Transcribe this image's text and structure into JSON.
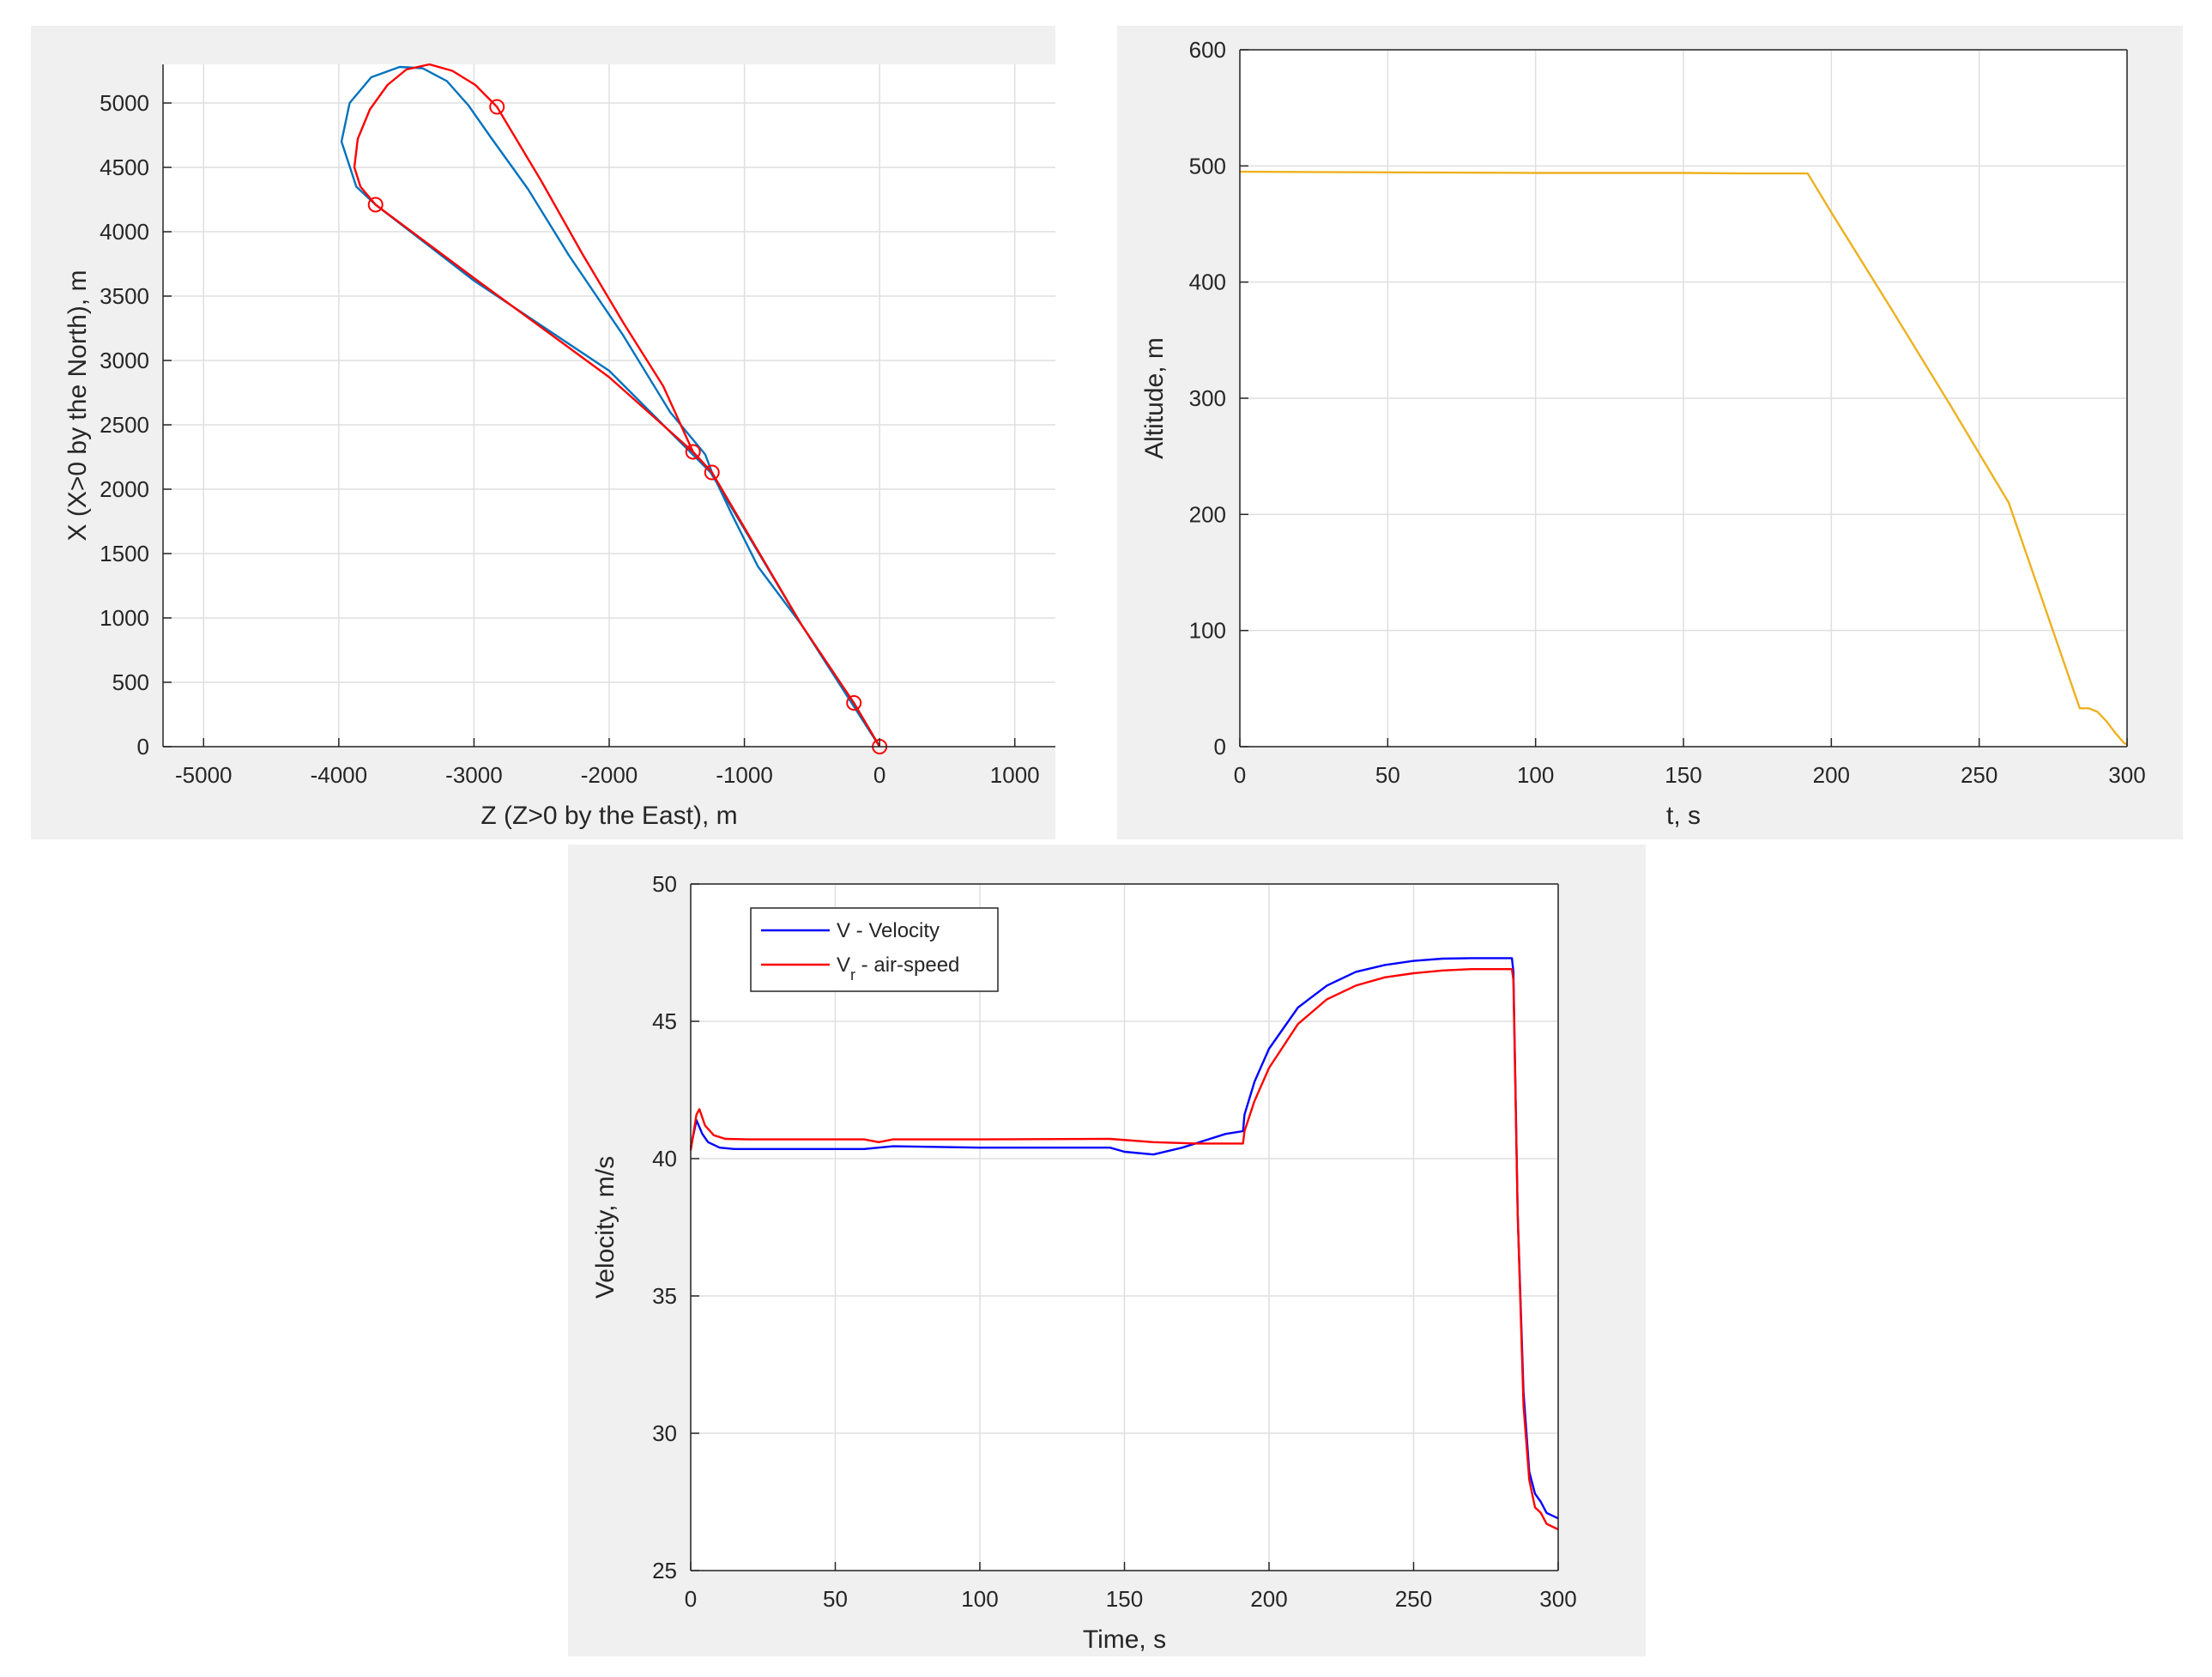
{
  "chart_data": [
    {
      "type": "line",
      "xlabel": "Z (Z>0 by the East), m",
      "ylabel": "X (X>0 by the North), m",
      "xlim": [
        -5300,
        1300
      ],
      "ylim": [
        0,
        5300
      ],
      "xticks": [
        -5000,
        -4000,
        -3000,
        -2000,
        -1000,
        0,
        1000
      ],
      "yticks": [
        0,
        500,
        1000,
        1500,
        2000,
        2500,
        3000,
        3500,
        4000,
        4500,
        5000
      ],
      "grid": true,
      "series": [
        {
          "color": "#0072bd",
          "x": [
            0,
            -580,
            -1250,
            -2000,
            -3000,
            -3728,
            -3870,
            -3980,
            -3920,
            -3760,
            -3550,
            -3380,
            -3200,
            -3040,
            -2880,
            -2600,
            -2300,
            -1900,
            -1550,
            -1290,
            -1240,
            -1100,
            -900,
            -580,
            -300,
            -190,
            0
          ],
          "y": [
            0,
            950,
            2130,
            2920,
            3620,
            4210,
            4350,
            4700,
            5000,
            5200,
            5280,
            5270,
            5170,
            4980,
            4740,
            4330,
            3820,
            3200,
            2600,
            2270,
            2130,
            1820,
            1400,
            950,
            500,
            340,
            0
          ]
        },
        {
          "color": "#ff0000",
          "x": [
            0,
            -190,
            -580,
            -1240,
            -1380,
            -1600,
            -1900,
            -2200,
            -2500,
            -2830,
            -2990,
            -3160,
            -3330,
            -3500,
            -3640,
            -3770,
            -3860,
            -3885,
            -3840,
            -3728,
            -3000,
            -2000,
            -1380,
            -1240
          ],
          "y": [
            0,
            340,
            950,
            2130,
            2290,
            2800,
            3300,
            3830,
            4390,
            4970,
            5140,
            5250,
            5300,
            5260,
            5140,
            4950,
            4720,
            4500,
            4350,
            4210,
            3640,
            2870,
            2290,
            2130
          ]
        }
      ],
      "markers": {
        "color": "#ff0000",
        "x": [
          -2830,
          -3728,
          -1380,
          -1240,
          -190,
          0
        ],
        "y": [
          4970,
          4210,
          2290,
          2130,
          340,
          0
        ]
      }
    },
    {
      "type": "line",
      "xlabel": "t, s",
      "ylabel": "Altitude, m",
      "xlim": [
        0,
        300
      ],
      "ylim": [
        0,
        600
      ],
      "xticks": [
        0,
        50,
        100,
        150,
        200,
        250,
        300
      ],
      "yticks": [
        0,
        100,
        200,
        300,
        400,
        500,
        600
      ],
      "grid": true,
      "series": [
        {
          "color": "#edb120",
          "x": [
            0,
            50,
            100,
            150,
            170,
            185,
            192,
            200,
            220,
            240,
            260,
            284,
            287,
            290,
            293,
            296,
            299,
            300
          ],
          "y": [
            495,
            494.5,
            494,
            494,
            493.5,
            493.5,
            493.5,
            460,
            378,
            295,
            210,
            33,
            33,
            30,
            22,
            12,
            3,
            2
          ]
        }
      ]
    },
    {
      "type": "line",
      "xlabel": "Time, s",
      "ylabel": "Velocity, m/s",
      "xlim": [
        0,
        300
      ],
      "ylim": [
        25,
        50
      ],
      "xticks": [
        0,
        50,
        100,
        150,
        200,
        250,
        300
      ],
      "yticks": [
        25,
        30,
        35,
        40,
        45,
        50
      ],
      "grid": true,
      "legend_position": "top-left",
      "series": [
        {
          "name": "V - Velocity",
          "color": "#0000ff",
          "x": [
            0,
            2,
            4,
            6,
            10,
            15,
            30,
            60,
            70,
            100,
            145,
            150,
            160,
            170,
            185,
            191,
            191.5,
            195,
            200,
            210,
            220,
            230,
            240,
            250,
            260,
            270,
            284,
            284.5,
            286,
            288,
            290,
            292,
            294,
            296,
            300
          ],
          "y": [
            40.4,
            41.4,
            40.9,
            40.6,
            40.4,
            40.35,
            40.35,
            40.35,
            40.45,
            40.4,
            40.4,
            40.25,
            40.15,
            40.4,
            40.9,
            41.0,
            41.6,
            42.8,
            44.0,
            45.5,
            46.3,
            46.8,
            47.05,
            47.2,
            47.28,
            47.3,
            47.3,
            46.8,
            38.0,
            31.5,
            28.6,
            27.8,
            27.5,
            27.1,
            26.9
          ]
        },
        {
          "name": "V r - air-speed",
          "legend_main": "V",
          "legend_sub": "r",
          "legend_rest": " - air-speed",
          "color": "#ff0000",
          "x": [
            0,
            2,
            3,
            5,
            8,
            12,
            20,
            60,
            65,
            70,
            100,
            145,
            160,
            175,
            191,
            191.5,
            195,
            200,
            210,
            220,
            230,
            240,
            250,
            260,
            270,
            284,
            284.5,
            286,
            288,
            290,
            292,
            294,
            296,
            300
          ],
          "y": [
            40.3,
            41.6,
            41.8,
            41.2,
            40.85,
            40.72,
            40.7,
            40.7,
            40.6,
            40.7,
            40.7,
            40.72,
            40.6,
            40.55,
            40.55,
            41.0,
            42.1,
            43.3,
            44.9,
            45.8,
            46.3,
            46.6,
            46.75,
            46.85,
            46.9,
            46.9,
            46.5,
            38.0,
            31.0,
            28.3,
            27.3,
            27.1,
            26.7,
            26.5
          ]
        }
      ]
    }
  ]
}
